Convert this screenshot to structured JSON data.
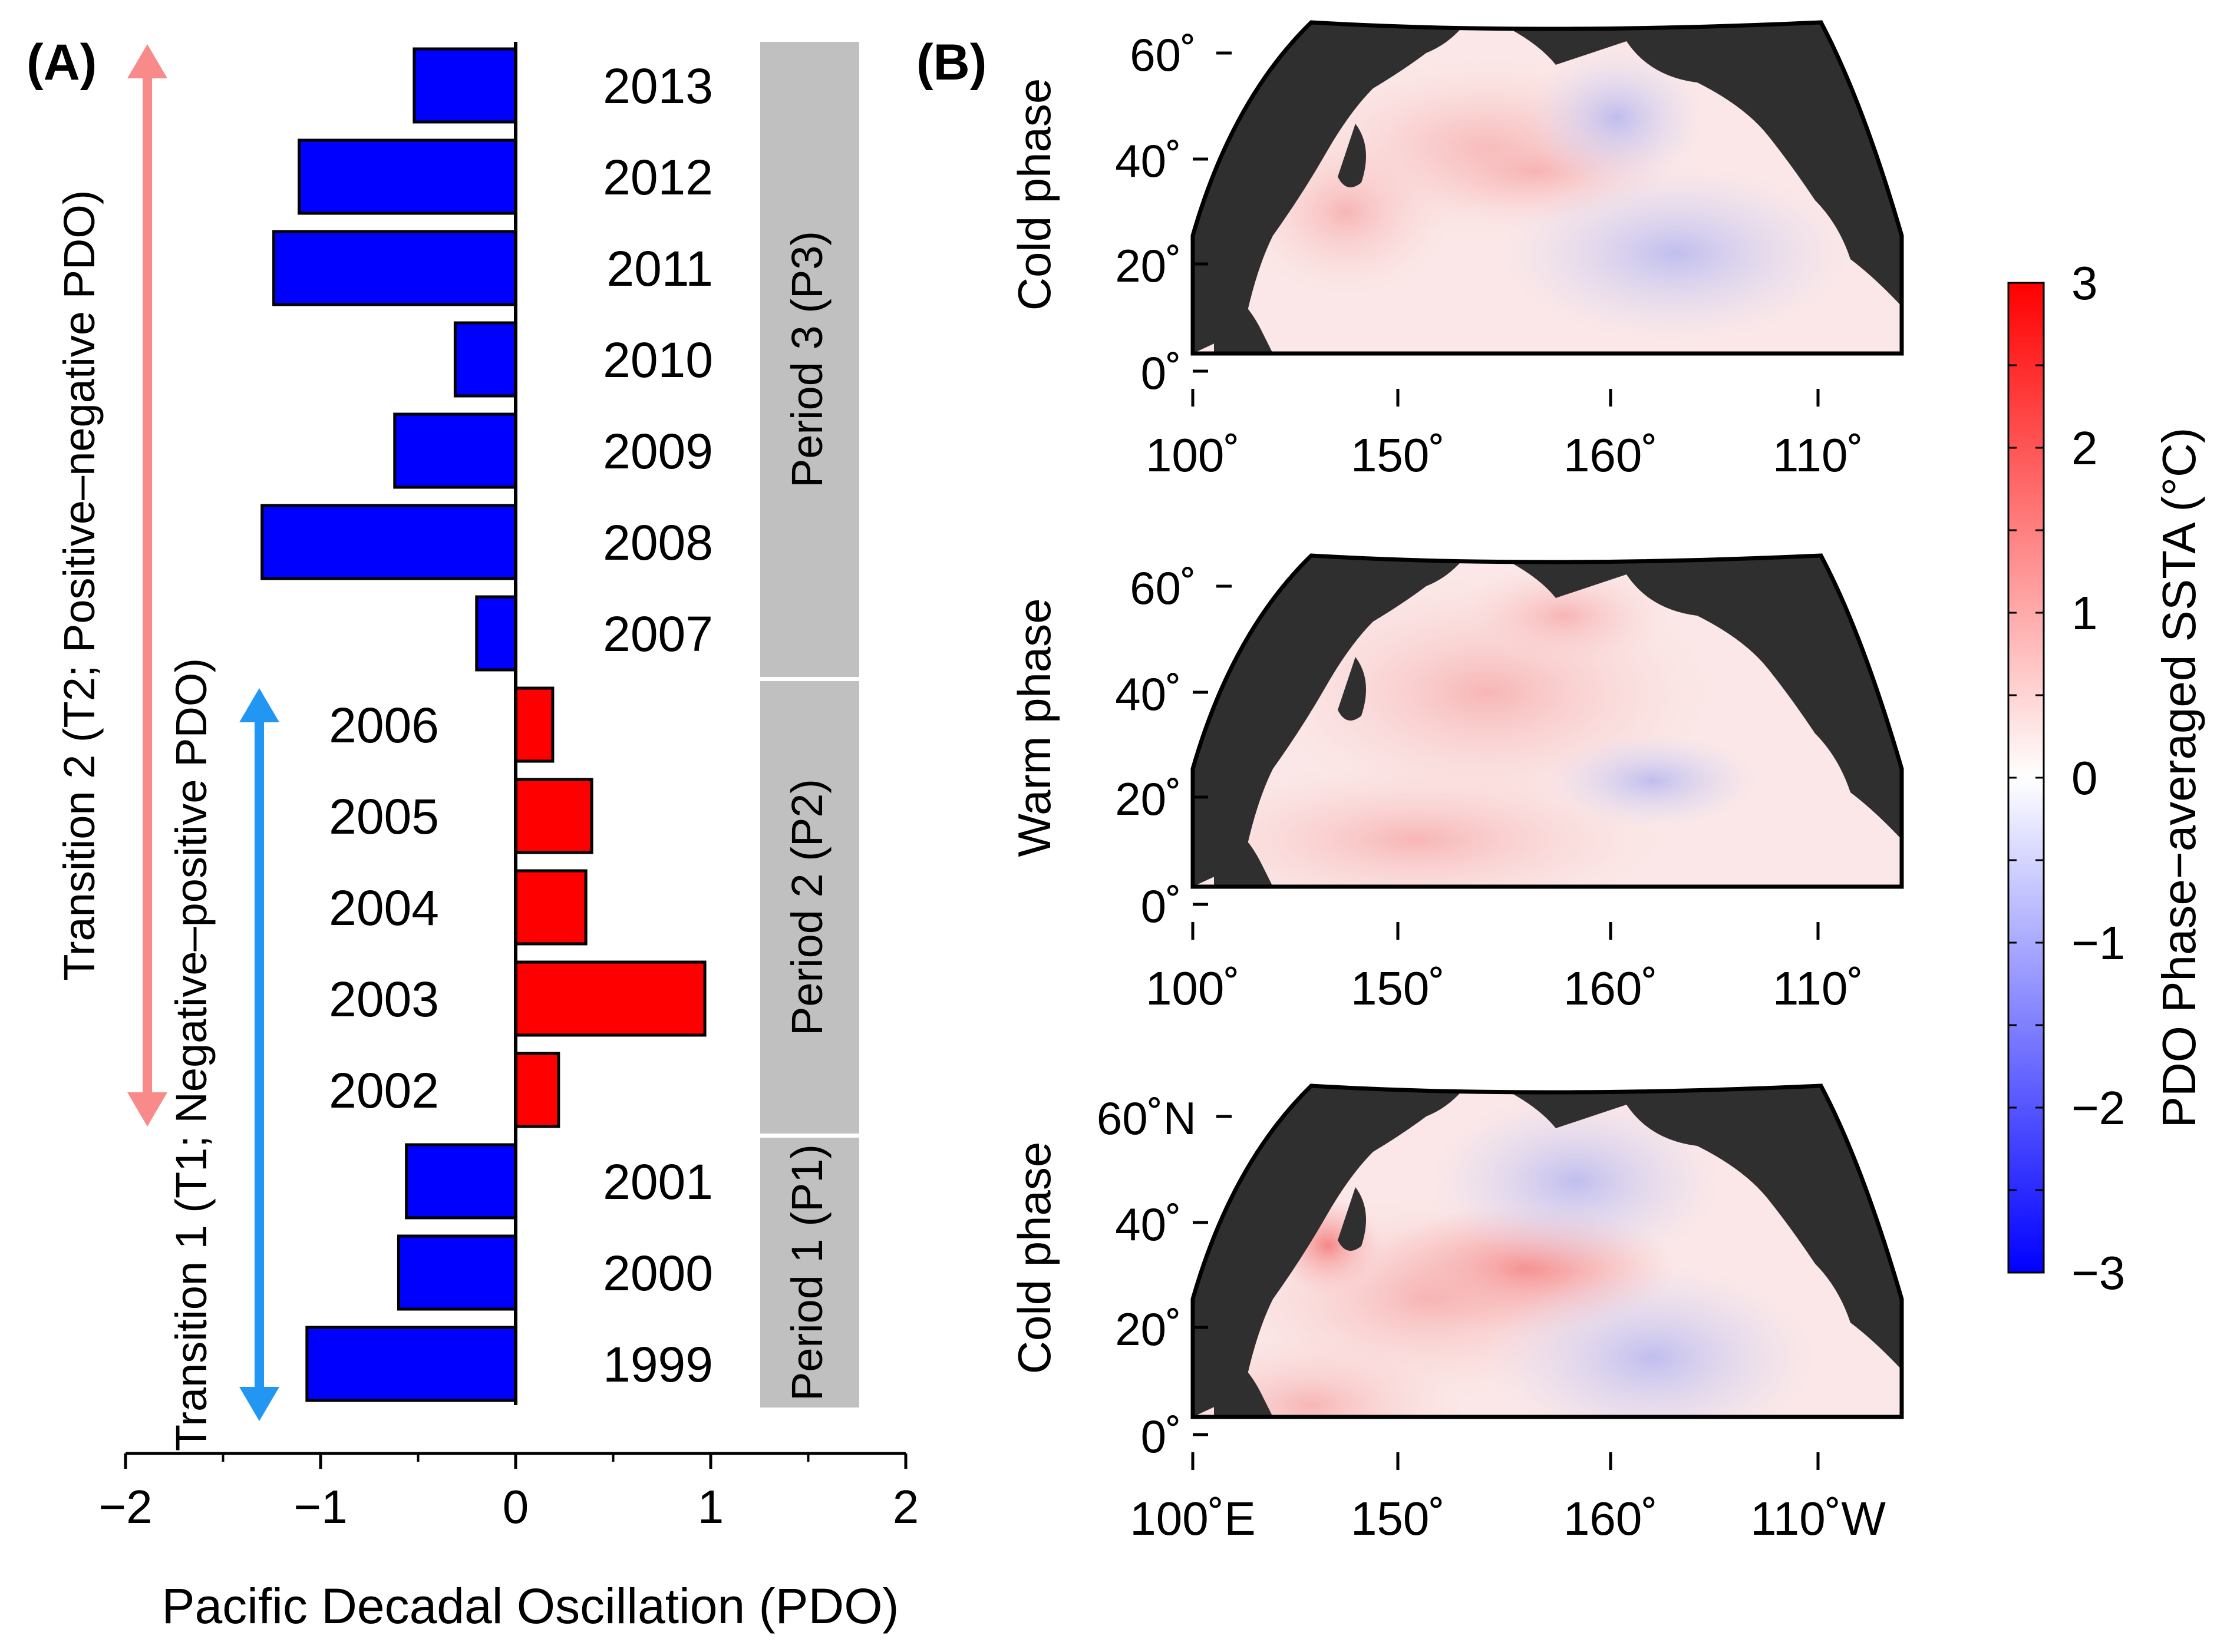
{
  "chart_data": [
    {
      "panel_label": "(A)",
      "type": "bar",
      "orientation": "horizontal",
      "xlabel": "Pacific Decadal Oscillation (PDO)",
      "xlim": [
        -2,
        2
      ],
      "xticks": [
        "−2",
        "−1",
        "0",
        "1",
        "2"
      ],
      "categories": [
        "1999",
        "2000",
        "2001",
        "2002",
        "2003",
        "2004",
        "2005",
        "2006",
        "2007",
        "2008",
        "2009",
        "2010",
        "2011",
        "2012",
        "2013"
      ],
      "values": [
        -1.07,
        -0.6,
        -0.56,
        0.22,
        0.97,
        0.36,
        0.39,
        0.19,
        -0.2,
        -1.3,
        -0.62,
        -0.31,
        -1.24,
        -1.11,
        -0.52
      ],
      "colors": {
        "positive": "#ff0000",
        "negative": "#0000ff",
        "outline": "#000000"
      },
      "periods": [
        {
          "label": "Period 1 (P1)",
          "from": "1999",
          "to": "2001"
        },
        {
          "label": "Period 2 (P2)",
          "from": "2002",
          "to": "2006"
        },
        {
          "label": "Period 3 (P3)",
          "from": "2007",
          "to": "2013"
        }
      ],
      "transitions": [
        {
          "label": "Transition 1 (T1; Negative–positive PDO)",
          "from": "1999",
          "to": "2006",
          "color": "#2196f3"
        },
        {
          "label": "Transition 2 (T2; Positive–negative PDO)",
          "from": "2002",
          "to": "2013",
          "color": "#f88a8a"
        }
      ],
      "period_box_color": "#c0c0c0"
    },
    {
      "panel_label": "(B)",
      "type": "heatmap",
      "description_kind": "maps",
      "maps": [
        {
          "title": "Cold phase",
          "lat_labels": [
            "60˚",
            "40˚",
            "20˚",
            "0˚"
          ],
          "lon_labels": [
            "100˚",
            "150˚",
            "160˚",
            "110˚"
          ]
        },
        {
          "title": "Warm phase",
          "lat_labels": [
            "60˚",
            "40˚",
            "20˚",
            "0˚"
          ],
          "lon_labels": [
            "100˚",
            "150˚",
            "160˚",
            "110˚"
          ]
        },
        {
          "title": "Cold phase",
          "lat_labels": [
            "60˚N",
            "40˚",
            "20˚",
            "0˚"
          ],
          "lon_labels": [
            "100˚E",
            "150˚",
            "160˚",
            "110˚W"
          ]
        }
      ],
      "colorbar": {
        "label": "PDO Phase−averaged SSTA (°C)",
        "range": [
          -3,
          3
        ],
        "ticks": [
          "3",
          "2",
          "1",
          "0",
          "−1",
          "−2",
          "−3"
        ],
        "colors": {
          "low": "#0000ff",
          "mid": "#ffffff",
          "high": "#ff0000"
        }
      },
      "land_color": "#2f2f2f"
    }
  ]
}
